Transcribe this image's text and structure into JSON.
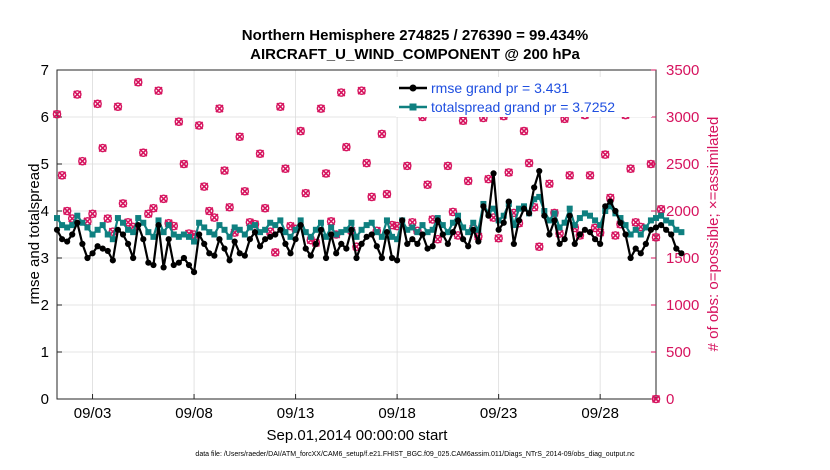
{
  "title_line1": "Northern Hemisphere 274825 / 276390 = 99.434%",
  "title_line2": "AIRCRAFT_U_WIND_COMPONENT @ 200 hPa",
  "footnote": "data file: /Users/raeder/DAI/ATM_forcXX/CAM6_setup/f.e21.FHIST_BGC.f09_025.CAM6assim.011/Diags_NTrS_2014-09/obs_diag_output.nc",
  "colors": {
    "rmse": "#000000",
    "spread": "#0f8080",
    "obs": "#d6135e",
    "legend_text": "#1f4fe0"
  },
  "chart_data": {
    "type": "line",
    "title": "Northern Hemisphere 274825 / 276390 = 99.434%  AIRCRAFT_U_WIND_COMPONENT @ 200 hPa",
    "xlabel": "Sep.01,2014 00:00:00 start",
    "ylabel": "rmse and totalspread",
    "ylabel_right": "# of obs: o=possible; ×=assimilated",
    "xlim": [
      1.25,
      30.75
    ],
    "ylim": [
      0,
      7
    ],
    "ylim_right": [
      0,
      3500
    ],
    "yticks": [
      0,
      1,
      2,
      3,
      4,
      5,
      6,
      7
    ],
    "yticks_right": [
      0,
      500,
      1000,
      1500,
      2000,
      2500,
      3000,
      3500
    ],
    "xticks": [
      3,
      8,
      13,
      18,
      23,
      28
    ],
    "xtick_labels": [
      "09/03",
      "09/08",
      "09/13",
      "09/18",
      "09/23",
      "09/28"
    ],
    "grid": true,
    "legend": [
      "rmse grand pr = 3.431",
      "totalspread grand pr = 3.7252"
    ],
    "legend_position": "top-right",
    "x_start": 1.25,
    "x_step": 0.25,
    "series": [
      {
        "name": "rmse grand pr = 3.431",
        "marker": "filled-circle",
        "values": [
          3.6,
          3.4,
          3.35,
          3.5,
          3.75,
          3.3,
          3.0,
          3.1,
          3.25,
          3.2,
          3.15,
          2.95,
          3.6,
          3.5,
          3.3,
          3.0,
          3.7,
          3.4,
          2.9,
          2.85,
          3.7,
          2.8,
          3.4,
          2.85,
          2.9,
          3.0,
          2.85,
          2.7,
          3.5,
          3.3,
          3.1,
          3.05,
          3.4,
          3.2,
          2.95,
          3.35,
          3.1,
          3.05,
          3.4,
          3.55,
          3.25,
          3.4,
          3.45,
          3.5,
          3.6,
          3.3,
          3.1,
          3.4,
          3.7,
          3.2,
          3.05,
          3.3,
          3.6,
          3.0,
          3.5,
          3.1,
          3.3,
          3.2,
          3.6,
          3.0,
          3.3,
          3.45,
          3.5,
          3.25,
          3.0,
          3.55,
          3.0,
          2.95,
          3.8,
          3.3,
          3.4,
          3.3,
          3.5,
          3.2,
          3.25,
          3.8,
          3.5,
          3.3,
          3.55,
          3.8,
          3.4,
          3.25,
          3.6,
          3.35,
          4.1,
          3.9,
          4.8,
          3.6,
          3.75,
          4.2,
          3.3,
          3.8,
          4.05,
          3.95,
          4.5,
          4.85,
          3.9,
          3.5,
          3.8,
          3.3,
          3.4,
          3.9,
          3.3,
          3.5,
          3.6,
          3.55,
          3.4,
          3.3,
          4.1,
          4.2,
          4.0,
          3.75,
          3.5,
          3.0,
          3.2,
          3.1,
          3.3,
          3.6,
          3.65,
          3.7,
          3.6,
          3.5,
          3.2,
          3.1
        ]
      },
      {
        "name": "totalspread grand pr = 3.7252",
        "marker": "filled-square",
        "values": [
          3.85,
          3.7,
          3.65,
          3.7,
          3.9,
          3.75,
          3.65,
          3.5,
          3.6,
          3.7,
          3.5,
          3.4,
          3.85,
          3.75,
          3.6,
          3.55,
          3.85,
          3.75,
          3.55,
          3.45,
          3.8,
          3.55,
          3.7,
          3.5,
          3.45,
          3.5,
          3.45,
          3.35,
          3.75,
          3.65,
          3.55,
          3.5,
          3.7,
          3.6,
          3.45,
          3.65,
          3.6,
          3.5,
          3.65,
          3.7,
          3.55,
          3.6,
          3.75,
          3.7,
          3.8,
          3.55,
          3.45,
          3.6,
          3.8,
          3.55,
          3.45,
          3.6,
          3.75,
          3.45,
          3.65,
          3.5,
          3.55,
          3.6,
          3.75,
          3.45,
          3.6,
          3.7,
          3.75,
          3.55,
          3.45,
          3.8,
          3.45,
          3.4,
          3.8,
          3.6,
          3.65,
          3.55,
          3.7,
          3.55,
          3.6,
          3.85,
          3.7,
          3.55,
          3.75,
          3.9,
          3.65,
          3.55,
          3.75,
          3.6,
          4.15,
          3.95,
          4.05,
          3.8,
          3.9,
          4.15,
          3.7,
          4.05,
          4.1,
          3.95,
          4.25,
          4.3,
          4.0,
          3.8,
          3.95,
          3.65,
          3.75,
          4.05,
          3.7,
          3.85,
          3.95,
          3.9,
          3.8,
          3.7,
          4.0,
          4.1,
          3.95,
          3.85,
          3.7,
          3.5,
          3.6,
          3.5,
          3.65,
          3.8,
          3.85,
          3.9,
          3.8,
          3.75,
          3.6,
          3.55
        ]
      }
    ],
    "obs_counts": [
      3030,
      2380,
      2000,
      1920,
      3240,
      2530,
      1890,
      1970,
      3140,
      2670,
      1920,
      1780,
      3110,
      2080,
      1880,
      1830,
      3370,
      2620,
      1970,
      2030,
      3280,
      2130,
      1870,
      1840,
      2950,
      2500,
      1760,
      1750,
      2910,
      2260,
      2000,
      1930,
      3090,
      2430,
      2040,
      1770,
      2790,
      2210,
      1880,
      1860,
      2610,
      2030,
      1780,
      1560,
      3110,
      2450,
      1840,
      1810,
      2850,
      2190,
      1690,
      1660,
      3090,
      2400,
      1890,
      1750,
      3260,
      2680,
      1790,
      1620,
      3280,
      2510,
      2150,
      1790,
      2820,
      2180,
      1850,
      1840,
      3230,
      2480,
      1880,
      1790,
      3000,
      2280,
      1910,
      1700,
      3060,
      2480,
      1990,
      1740,
      2960,
      2320,
      1810,
      1730,
      2990,
      2340,
      1930,
      1710,
      3010,
      2410,
      1980,
      1870,
      2850,
      2510,
      2040,
      1620,
      3100,
      2290,
      1980,
      1760,
      2980,
      2380,
      1820,
      1740,
      3020,
      2380,
      1820,
      1770,
      2600,
      2140,
      1740,
      1860,
      3020,
      2450,
      1880,
      1830,
      3230,
      2500,
      1720,
      2020
    ]
  }
}
